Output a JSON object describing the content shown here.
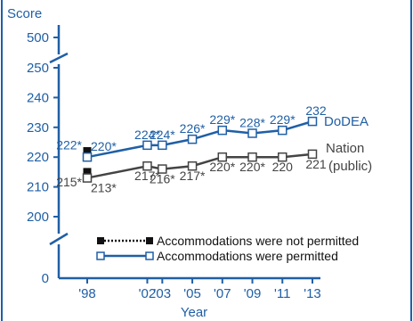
{
  "chart_data": {
    "type": "line",
    "ylabel": "Score",
    "xlabel": "Year",
    "y_ticks_top": [
      "500"
    ],
    "y_ticks": [
      "250",
      "240",
      "230",
      "220",
      "210",
      "200"
    ],
    "y_tick_zero": "0",
    "ylim": [
      200,
      250
    ],
    "axis_break": true,
    "x_categories": [
      "'98",
      "'02",
      "'03",
      "'05",
      "'07",
      "'09",
      "'11",
      "'13"
    ],
    "x_years": [
      1998,
      2002,
      2003,
      2005,
      2007,
      2009,
      2011,
      2013
    ],
    "series": [
      {
        "name": "DoDEA",
        "color": "#1f5fa6",
        "values": [
          220,
          224,
          224,
          226,
          229,
          228,
          229,
          232
        ],
        "labels": [
          "220*",
          "224*",
          "224*",
          "226*",
          "229*",
          "228*",
          "229*",
          "232"
        ],
        "not_permitted_value": 222,
        "not_permitted_label": "222*"
      },
      {
        "name": "Nation",
        "name_line2": "(public)",
        "color": "#444444",
        "values": [
          213,
          217,
          216,
          217,
          220,
          220,
          220,
          221
        ],
        "labels": [
          "213*",
          "217*",
          "216*",
          "217*",
          "220*",
          "220*",
          "220",
          "221"
        ],
        "not_permitted_value": 215,
        "not_permitted_label": "215*"
      }
    ],
    "legend": [
      {
        "label": "Accommodations were not permitted",
        "style": "dotted-filled"
      },
      {
        "label": "Accommodations were permitted",
        "style": "solid-open"
      }
    ]
  }
}
